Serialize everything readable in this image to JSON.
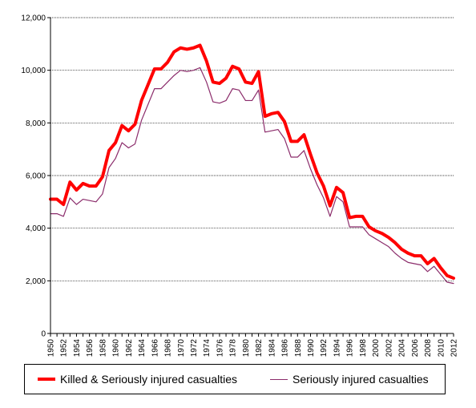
{
  "chart_data": {
    "type": "line",
    "title": "",
    "xlabel": "",
    "ylabel": "",
    "ylim": [
      0,
      12000
    ],
    "yticks": [
      0,
      2000,
      4000,
      6000,
      8000,
      10000,
      12000
    ],
    "ytick_labels": [
      "0",
      "2,000",
      "4,000",
      "6,000",
      "8,000",
      "10,000",
      "12,000"
    ],
    "x": [
      1950,
      1951,
      1952,
      1953,
      1954,
      1955,
      1956,
      1957,
      1958,
      1959,
      1960,
      1961,
      1962,
      1963,
      1964,
      1965,
      1966,
      1967,
      1968,
      1969,
      1970,
      1971,
      1972,
      1973,
      1974,
      1975,
      1976,
      1977,
      1978,
      1979,
      1980,
      1981,
      1982,
      1983,
      1984,
      1985,
      1986,
      1987,
      1988,
      1989,
      1990,
      1991,
      1992,
      1993,
      1994,
      1995,
      1996,
      1997,
      1998,
      1999,
      2000,
      2001,
      2002,
      2003,
      2004,
      2005,
      2006,
      2007,
      2008,
      2009,
      2010,
      2011,
      2012
    ],
    "xtick_labels": [
      "1950",
      "1952",
      "1954",
      "1956",
      "1958",
      "1960",
      "1962",
      "1964",
      "1966",
      "1968",
      "1970",
      "1972",
      "1974",
      "1976",
      "1978",
      "1980",
      "1982",
      "1984",
      "1986",
      "1988",
      "1990",
      "1992",
      "1994",
      "1996",
      "1998",
      "2000",
      "2002",
      "2004",
      "2006",
      "2008",
      "2010",
      "2012"
    ],
    "grid": "horizontal-dotted",
    "legend_position": "bottom",
    "series": [
      {
        "name": "Killed & Seriously injured casualties",
        "color": "#ff0000",
        "values": [
          5100,
          5100,
          4900,
          5750,
          5450,
          5700,
          5600,
          5600,
          5950,
          6950,
          7250,
          7900,
          7700,
          7950,
          8850,
          9450,
          10050,
          10050,
          10300,
          10700,
          10850,
          10800,
          10850,
          10950,
          10350,
          9550,
          9500,
          9700,
          10150,
          10050,
          9550,
          9500,
          9950,
          8250,
          8350,
          8400,
          8050,
          7300,
          7300,
          7550,
          6800,
          6100,
          5600,
          4850,
          5550,
          5350,
          4400,
          4450,
          4450,
          4050,
          3900,
          3800,
          3650,
          3450,
          3200,
          3050,
          2950,
          2950,
          2650,
          2850,
          2500,
          2200,
          2100
        ]
      },
      {
        "name": "Seriously injured casualties",
        "color": "#8b2c6b",
        "values": [
          4550,
          4550,
          4450,
          5150,
          4900,
          5100,
          5050,
          5000,
          5300,
          6300,
          6650,
          7250,
          7050,
          7200,
          8100,
          8700,
          9300,
          9300,
          9550,
          9800,
          10000,
          9950,
          10000,
          10100,
          9550,
          8800,
          8750,
          8850,
          9300,
          9250,
          8850,
          8850,
          9250,
          7650,
          7700,
          7750,
          7400,
          6700,
          6700,
          6950,
          6250,
          5650,
          5150,
          4450,
          5200,
          5000,
          4050,
          4050,
          4050,
          3750,
          3600,
          3450,
          3300,
          3050,
          2850,
          2700,
          2650,
          2600,
          2350,
          2550,
          2250,
          1950,
          1900
        ]
      }
    ]
  }
}
